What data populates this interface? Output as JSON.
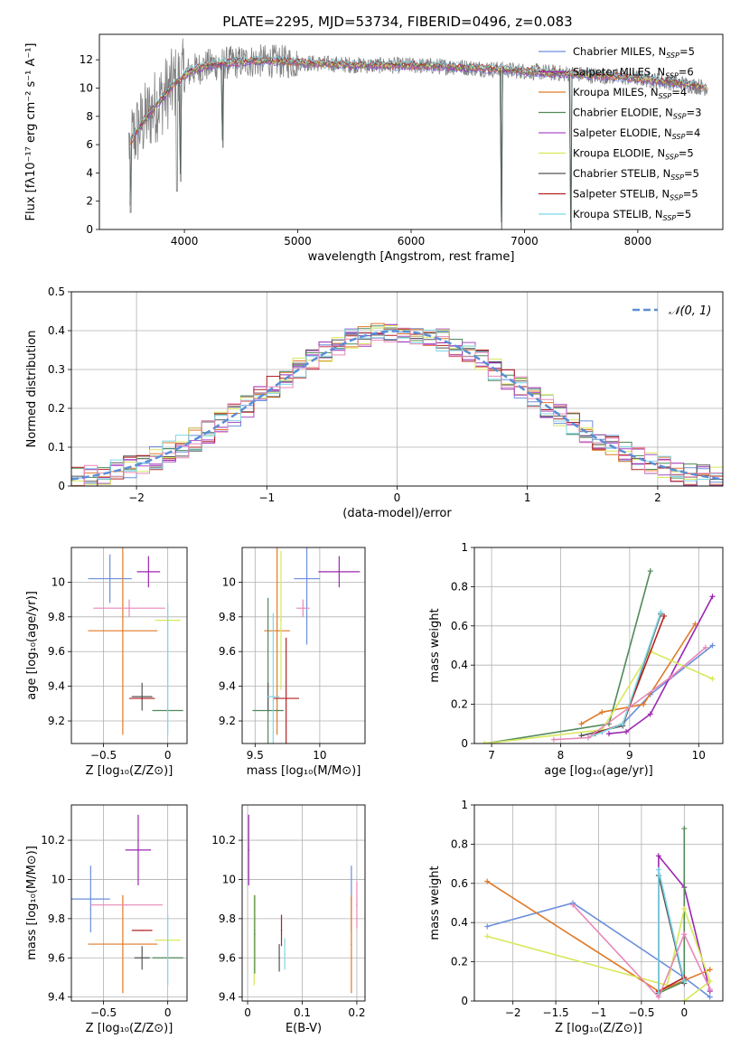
{
  "figure_title": "PLATE=2295, MJD=53734, FIBERID=0496, z=0.083",
  "fit_colors": [
    "#6a8fdc",
    "#9b27b0",
    "#e07a27",
    "#4f8a5a",
    "#a94fc6",
    "#d8e85a",
    "#555555",
    "#b22222",
    "#7ed6e6",
    "#e888b8"
  ],
  "legend_colors": [
    "#6a8fdc",
    "#9b27b0",
    "#e07a27",
    "#4f8a5a",
    "#a94fc6",
    "#d8e85a",
    "#555555",
    "#b22222",
    "#7ed6e6"
  ],
  "chart_data": [
    {
      "id": "spectrum",
      "type": "line",
      "title": "PLATE=2295, MJD=53734, FIBERID=0496, z=0.083",
      "xlabel": "wavelength [Angstrom, rest frame]",
      "ylabel": "Flux [fλ10⁻¹⁷ erg cm⁻² s⁻¹ A⁻¹]",
      "xlim": [
        3250,
        8750
      ],
      "ylim": [
        0,
        13.8
      ],
      "xticks": [
        4000,
        5000,
        6000,
        7000,
        8000
      ],
      "yticks": [
        0,
        2,
        4,
        6,
        8,
        10,
        12
      ],
      "grid": false,
      "legend_position": "right",
      "observed_color": "#808080",
      "continuum": {
        "x": [
          3510,
          3600,
          3750,
          3900,
          4050,
          4200,
          4400,
          4600,
          4800,
          5000,
          5300,
          5600,
          6000,
          6400,
          6800,
          7200,
          7600,
          8000,
          8400,
          8620
        ],
        "y": [
          6.0,
          7.2,
          8.8,
          10.2,
          11.2,
          11.6,
          11.8,
          11.9,
          11.9,
          11.8,
          11.7,
          11.6,
          11.6,
          11.5,
          11.3,
          11.1,
          10.9,
          10.7,
          10.3,
          10.0
        ]
      },
      "dips": [
        {
          "x": 3525,
          "y": 1.2
        },
        {
          "x": 3934,
          "y": 2.7
        },
        {
          "x": 3968,
          "y": 3.4
        },
        {
          "x": 4340,
          "y": 5.8
        },
        {
          "x": 6800,
          "y": 0.0
        },
        {
          "x": 7410,
          "y": 0.0
        }
      ],
      "series": [
        {
          "name": "Chabrier MILES, N",
          "sub": "SSP",
          "suffix": "=5"
        },
        {
          "name": "Salpeter MILES, N",
          "sub": "SSP",
          "suffix": "=6"
        },
        {
          "name": "Kroupa MILES, N",
          "sub": "SSP",
          "suffix": "=4"
        },
        {
          "name": "Chabrier ELODIE, N",
          "sub": "SSP",
          "suffix": "=3"
        },
        {
          "name": "Salpeter ELODIE, N",
          "sub": "SSP",
          "suffix": "=4"
        },
        {
          "name": "Kroupa ELODIE, N",
          "sub": "SSP",
          "suffix": "=5"
        },
        {
          "name": "Chabrier STELIB, N",
          "sub": "SSP",
          "suffix": "=5"
        },
        {
          "name": "Salpeter STELIB, N",
          "sub": "SSP",
          "suffix": "=5"
        },
        {
          "name": "Kroupa STELIB, N",
          "sub": "SSP",
          "suffix": "=5"
        }
      ]
    },
    {
      "id": "residuals",
      "type": "line",
      "xlabel": "(data-model)/error",
      "ylabel": "Normed distribution",
      "xlim": [
        -2.5,
        2.5
      ],
      "ylim": [
        0,
        0.5
      ],
      "xticks": [
        -2,
        -1,
        0,
        1,
        2
      ],
      "yticks": [
        0.0,
        0.1,
        0.2,
        0.3,
        0.4,
        0.5
      ],
      "grid": true,
      "legend_position": "top-right",
      "legend": "𝒩(0, 1)",
      "gauss_color": "#5b8ed6",
      "bin_width": 0.1,
      "histogram_amplitude": 0.4
    },
    {
      "id": "age_vs_Z",
      "type": "scatter",
      "xlabel": "Z [log₁₀(Z/Z⊙)]",
      "ylabel": "age  [log₁₀(age/yr)]",
      "xlim": [
        -0.75,
        0.15
      ],
      "ylim": [
        9.07,
        10.2
      ],
      "xticks": [
        -0.5,
        0.0
      ],
      "yticks": [
        9.2,
        9.4,
        9.6,
        9.8,
        10.0
      ],
      "grid": true,
      "points": [
        {
          "x": -0.45,
          "y": 10.02,
          "xerr": 0.17,
          "yerr": 0.14,
          "color": "#6a8fdc"
        },
        {
          "x": -0.15,
          "y": 10.06,
          "xerr": 0.09,
          "yerr": 0.09,
          "color": "#9b27b0"
        },
        {
          "x": -0.35,
          "y": 9.72,
          "xerr": 0.27,
          "yerr": 0.6,
          "color": "#e07a27"
        },
        {
          "x": -0.3,
          "y": 9.85,
          "xerr": 0.28,
          "yerr": 0.05,
          "color": "#e888b8"
        },
        {
          "x": 0.0,
          "y": 9.78,
          "xerr": 0.1,
          "yerr": 0.0,
          "color": "#d8e85a"
        },
        {
          "x": 0.0,
          "y": 9.26,
          "xerr": 0.12,
          "yerr": 0.0,
          "color": "#4f8a5a"
        },
        {
          "x": -0.2,
          "y": 9.34,
          "xerr": 0.08,
          "yerr": 0.08,
          "color": "#555555"
        },
        {
          "x": -0.2,
          "y": 9.33,
          "xerr": 0.1,
          "yerr": 0.0,
          "color": "#b22222"
        },
        {
          "x": 0.0,
          "y": 9.5,
          "xerr": 0.0,
          "yerr": 0.38,
          "color": "#7ed6e6"
        }
      ]
    },
    {
      "id": "age_vs_mass",
      "type": "scatter",
      "xlabel": "mass [log₁₀(M/M⊙)]",
      "ylabel": "",
      "xlim": [
        9.4,
        10.35
      ],
      "ylim": [
        9.07,
        10.2
      ],
      "xticks": [
        9.5,
        10.0
      ],
      "yticks": [
        9.2,
        9.4,
        9.6,
        9.8,
        10.0
      ],
      "grid": true,
      "points": [
        {
          "x": 9.9,
          "y": 10.02,
          "xerr": 0.1,
          "yerr": 0.38,
          "color": "#6a8fdc"
        },
        {
          "x": 10.15,
          "y": 10.06,
          "xerr": 0.16,
          "yerr": 0.09,
          "color": "#9b27b0"
        },
        {
          "x": 9.67,
          "y": 9.72,
          "xerr": 0.1,
          "yerr": 0.6,
          "color": "#e07a27"
        },
        {
          "x": 9.87,
          "y": 9.85,
          "xerr": 0.05,
          "yerr": 0.05,
          "color": "#e888b8"
        },
        {
          "x": 9.7,
          "y": 9.78,
          "xerr": 0.0,
          "yerr": 0.4,
          "color": "#d8e85a"
        },
        {
          "x": 9.6,
          "y": 9.26,
          "xerr": 0.12,
          "yerr": 0.65,
          "color": "#4f8a5a"
        },
        {
          "x": 9.6,
          "y": 9.34,
          "xerr": 0.0,
          "yerr": 0.08,
          "color": "#555555"
        },
        {
          "x": 9.74,
          "y": 9.33,
          "xerr": 0.1,
          "yerr": 0.35,
          "color": "#b22222"
        },
        {
          "x": 9.64,
          "y": 9.34,
          "xerr": 0.05,
          "yerr": 0.48,
          "color": "#7ed6e6"
        }
      ]
    },
    {
      "id": "weight_vs_age",
      "type": "line",
      "xlabel": "age  [log₁₀(age/yr)]",
      "ylabel": "mass weight",
      "xlim": [
        6.75,
        10.35
      ],
      "ylim": [
        0,
        1.0
      ],
      "xticks": [
        7,
        8,
        9,
        10
      ],
      "yticks": [
        0.0,
        0.2,
        0.4,
        0.6,
        0.8,
        1.0
      ],
      "grid": true,
      "series": [
        {
          "color": "#6a8fdc",
          "x": [
            8.6,
            8.9,
            9.3,
            10.2
          ],
          "y": [
            0.06,
            0.1,
            0.25,
            0.5
          ]
        },
        {
          "color": "#9b27b0",
          "x": [
            8.7,
            8.95,
            9.3,
            10.2
          ],
          "y": [
            0.05,
            0.06,
            0.15,
            0.75
          ]
        },
        {
          "color": "#e07a27",
          "x": [
            8.3,
            8.6,
            9.2,
            9.95
          ],
          "y": [
            0.1,
            0.16,
            0.2,
            0.61
          ]
        },
        {
          "color": "#4f8a5a",
          "x": [
            6.9,
            8.7,
            9.3
          ],
          "y": [
            0.0,
            0.1,
            0.88
          ]
        },
        {
          "color": "#d8e85a",
          "x": [
            6.9,
            8.6,
            9.3,
            10.2
          ],
          "y": [
            0.0,
            0.07,
            0.47,
            0.33
          ]
        },
        {
          "color": "#555555",
          "x": [
            8.3,
            8.9,
            9.45
          ],
          "y": [
            0.04,
            0.09,
            0.66
          ]
        },
        {
          "color": "#b22222",
          "x": [
            8.5,
            8.9,
            9.5
          ],
          "y": [
            0.05,
            0.1,
            0.65
          ]
        },
        {
          "color": "#7ed6e6",
          "x": [
            8.4,
            8.9,
            9.45
          ],
          "y": [
            0.03,
            0.1,
            0.67
          ]
        },
        {
          "color": "#e888b8",
          "x": [
            7.9,
            8.4,
            9.6,
            10.1
          ],
          "y": [
            0.02,
            0.03,
            0.34,
            0.49
          ]
        }
      ]
    },
    {
      "id": "mass_vs_Z",
      "type": "scatter",
      "xlabel": "Z [log₁₀(Z/Z⊙)]",
      "ylabel": "mass [log₁₀(M/M⊙)]",
      "xlim": [
        -0.75,
        0.15
      ],
      "ylim": [
        9.38,
        10.38
      ],
      "xticks": [
        -0.5,
        0.0
      ],
      "yticks": [
        9.4,
        9.6,
        9.8,
        10.0,
        10.2
      ],
      "grid": true,
      "points": [
        {
          "x": -0.6,
          "y": 9.9,
          "xerr": 0.15,
          "yerr": 0.17,
          "color": "#6a8fdc"
        },
        {
          "x": -0.23,
          "y": 10.15,
          "xerr": 0.1,
          "yerr": 0.18,
          "color": "#9b27b0"
        },
        {
          "x": -0.35,
          "y": 9.67,
          "xerr": 0.27,
          "yerr": 0.25,
          "color": "#e07a27"
        },
        {
          "x": -0.32,
          "y": 9.87,
          "xerr": 0.28,
          "yerr": 0.0,
          "color": "#e888b8"
        },
        {
          "x": 0.0,
          "y": 9.69,
          "xerr": 0.1,
          "yerr": 0.0,
          "color": "#d8e85a"
        },
        {
          "x": 0.0,
          "y": 9.6,
          "xerr": 0.12,
          "yerr": 0.0,
          "color": "#4f8a5a"
        },
        {
          "x": -0.2,
          "y": 9.6,
          "xerr": 0.06,
          "yerr": 0.06,
          "color": "#555555"
        },
        {
          "x": -0.2,
          "y": 9.74,
          "xerr": 0.08,
          "yerr": 0.0,
          "color": "#b22222"
        },
        {
          "x": 0.0,
          "y": 9.64,
          "xerr": 0.0,
          "yerr": 0.18,
          "color": "#7ed6e6"
        }
      ]
    },
    {
      "id": "mass_vs_ebv",
      "type": "scatter",
      "xlabel": "E(B-V)",
      "ylabel": "",
      "xlim": [
        -0.01,
        0.215
      ],
      "ylim": [
        9.38,
        10.38
      ],
      "xticks": [
        0.0,
        0.1,
        0.2
      ],
      "yticks": [
        9.4,
        9.6,
        9.8,
        10.0,
        10.2
      ],
      "grid": true,
      "points": [
        {
          "x": 0.19,
          "y": 9.9,
          "xerr": 0.0,
          "yerr": 0.17,
          "color": "#6a8fdc"
        },
        {
          "x": 0.002,
          "y": 10.15,
          "xerr": 0.0,
          "yerr": 0.18,
          "color": "#9b27b0"
        },
        {
          "x": 0.19,
          "y": 9.67,
          "xerr": 0.0,
          "yerr": 0.25,
          "color": "#e07a27"
        },
        {
          "x": 0.2,
          "y": 9.87,
          "xerr": 0.0,
          "yerr": 0.12,
          "color": "#e888b8"
        },
        {
          "x": 0.012,
          "y": 9.69,
          "xerr": 0.0,
          "yerr": 0.23,
          "color": "#d8e85a"
        },
        {
          "x": 0.013,
          "y": 9.72,
          "xerr": 0.0,
          "yerr": 0.2,
          "color": "#4f8a5a"
        },
        {
          "x": 0.058,
          "y": 9.6,
          "xerr": 0.0,
          "yerr": 0.07,
          "color": "#555555"
        },
        {
          "x": 0.062,
          "y": 9.74,
          "xerr": 0.0,
          "yerr": 0.08,
          "color": "#b22222"
        },
        {
          "x": 0.068,
          "y": 9.62,
          "xerr": 0.0,
          "yerr": 0.08,
          "color": "#7ed6e6"
        }
      ]
    },
    {
      "id": "weight_vs_Z",
      "type": "line",
      "xlabel": "Z [log₁₀(Z/Z⊙)]",
      "ylabel": "mass weight",
      "xlim": [
        -2.45,
        0.45
      ],
      "ylim": [
        0,
        1.0
      ],
      "xticks": [
        -2.0,
        -1.5,
        -1.0,
        -0.5,
        0.0
      ],
      "yticks": [
        0.0,
        0.2,
        0.4,
        0.6,
        0.8,
        1.0
      ],
      "grid": true,
      "series": [
        {
          "color": "#6a8fdc",
          "x": [
            -2.3,
            -1.3,
            0.0,
            0.3
          ],
          "y": [
            0.38,
            0.5,
            0.12,
            0.02
          ]
        },
        {
          "color": "#9b27b0",
          "x": [
            -0.3,
            -0.3,
            0.0,
            0.3
          ],
          "y": [
            0.05,
            0.74,
            0.58,
            0.05
          ]
        },
        {
          "color": "#e07a27",
          "x": [
            -2.3,
            -0.3,
            0.3
          ],
          "y": [
            0.61,
            0.05,
            0.16
          ]
        },
        {
          "color": "#4f8a5a",
          "x": [
            -0.3,
            0.0,
            0.0
          ],
          "y": [
            0.04,
            0.1,
            0.88
          ]
        },
        {
          "color": "#d8e85a",
          "x": [
            -2.3,
            -0.2,
            0.0,
            0.3,
            0.0
          ],
          "y": [
            0.33,
            0.08,
            0.47,
            0.1,
            0.0
          ]
        },
        {
          "color": "#555555",
          "x": [
            -0.3,
            -0.3,
            0.0
          ],
          "y": [
            0.04,
            0.64,
            0.09
          ]
        },
        {
          "color": "#b22222",
          "x": [
            -0.3,
            0.0
          ],
          "y": [
            0.05,
            0.12
          ]
        },
        {
          "color": "#7ed6e6",
          "x": [
            -0.3,
            -0.3,
            0.0
          ],
          "y": [
            0.03,
            0.67,
            0.1
          ]
        },
        {
          "color": "#e888b8",
          "x": [
            -1.3,
            -0.3,
            0.0,
            0.3
          ],
          "y": [
            0.49,
            0.02,
            0.34,
            0.06
          ]
        }
      ]
    }
  ]
}
